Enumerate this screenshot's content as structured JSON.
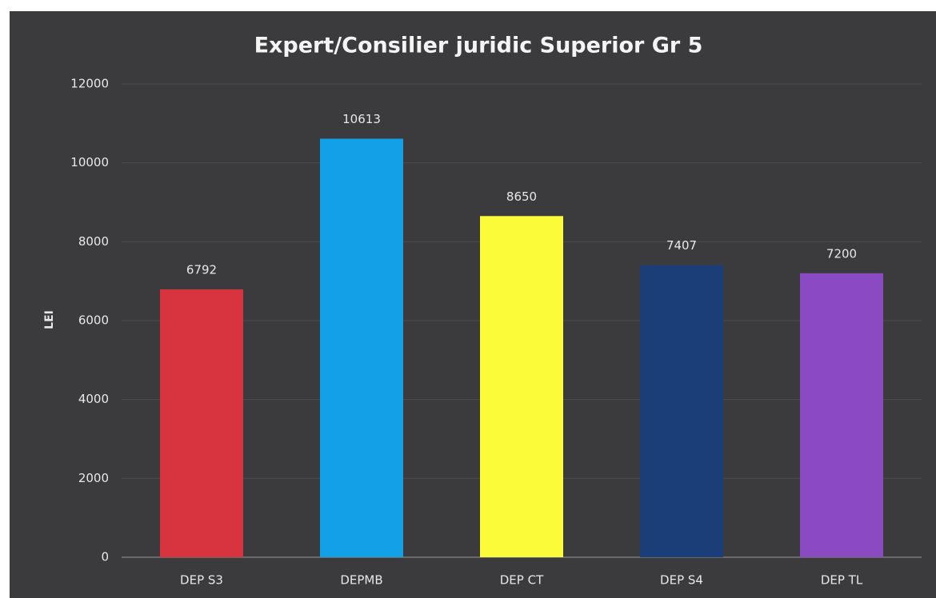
{
  "chart_data": {
    "type": "bar",
    "title": "Expert/Consilier juridic Superior Gr 5",
    "y_label": "LEI",
    "categories": [
      "DEP S3",
      "DEPMB",
      "DEP CT",
      "DEP S4",
      "DEP TL"
    ],
    "values": [
      6792,
      10613,
      8650,
      7407,
      7200
    ],
    "colors": [
      "#d8343f",
      "#12a0e6",
      "#fbfb3a",
      "#1c3e78",
      "#8a4bc2"
    ],
    "ylim": [
      0,
      12000
    ],
    "yticks": [
      0,
      2000,
      4000,
      6000,
      8000,
      10000,
      12000
    ],
    "grid": true
  }
}
